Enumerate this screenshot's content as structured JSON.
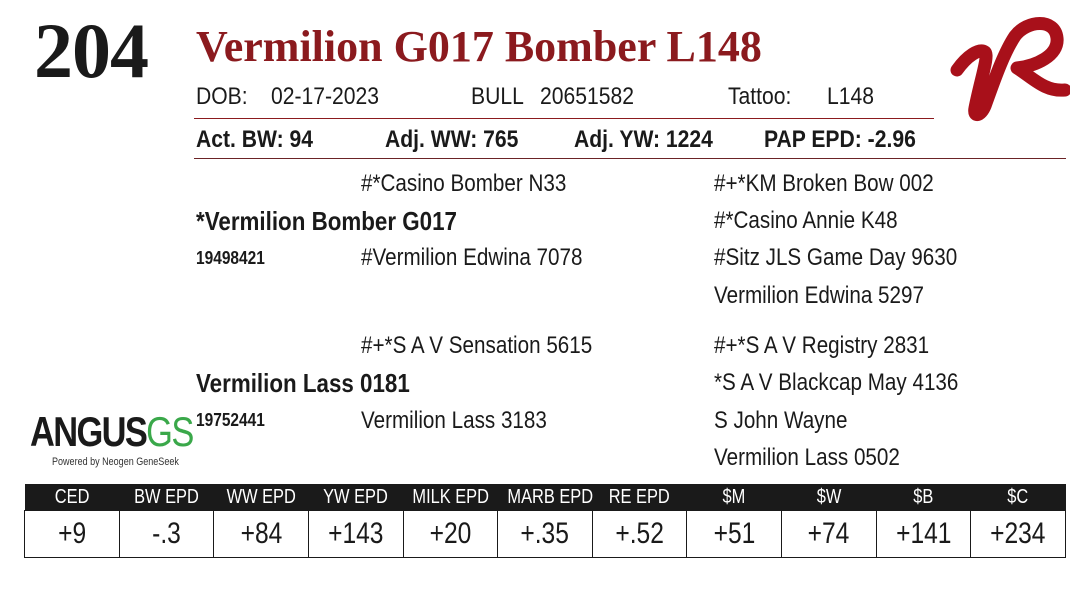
{
  "lot_number": "204",
  "animal_name": "Vermilion G017 Bomber L148",
  "info_line": {
    "dob_label": "DOB:",
    "dob_value": "02-17-2023",
    "sex_label": "BULL",
    "reg_value": "20651582",
    "tattoo_label": "Tattoo:",
    "tattoo_value": "L148"
  },
  "weights_line": {
    "act_bw": "Act. BW: 94",
    "adj_ww": "Adj. WW: 765",
    "adj_yw": "Adj. YW: 1224",
    "pap_epd": "PAP EPD: -2.96"
  },
  "pedigree": {
    "sire": {
      "name": "*Vermilion Bomber G017",
      "reg": "19498421",
      "sire": "#*Casino Bomber N33",
      "dam": "#Vermilion Edwina 7078",
      "ss": "#+*KM Broken Bow 002",
      "sd": "#*Casino Annie K48",
      "ds": "#Sitz JLS Game Day 9630",
      "dd": "Vermilion Edwina 5297"
    },
    "dam": {
      "name": "Vermilion Lass 0181",
      "reg": "19752441",
      "sire": "#+*S A V Sensation 5615",
      "dam": "Vermilion Lass 3183",
      "ss": "#+*S A V Registry 2831",
      "sd": "*S A V Blackcap May 4136",
      "ds": "S John Wayne",
      "dd": "Vermilion Lass 0502"
    }
  },
  "logo": {
    "brand_word": "ANGUS",
    "brand_suffix": "GS",
    "tagline": "Powered by Neogen GeneSeek",
    "brand_color": "#3aa84a"
  },
  "colors": {
    "title_red": "#8b1a1e",
    "header_black": "#1a1a1a"
  },
  "epd_table": {
    "headers": [
      "CED",
      "BW EPD",
      "WW EPD",
      "YW EPD",
      "MILK EPD",
      "MARB EPD",
      "RE EPD",
      "$M",
      "$W",
      "$B",
      "$C"
    ],
    "values": [
      "+9",
      "-.3",
      "+84",
      "+143",
      "+20",
      "+.35",
      "+.52",
      "+51",
      "+74",
      "+141",
      "+234"
    ]
  }
}
